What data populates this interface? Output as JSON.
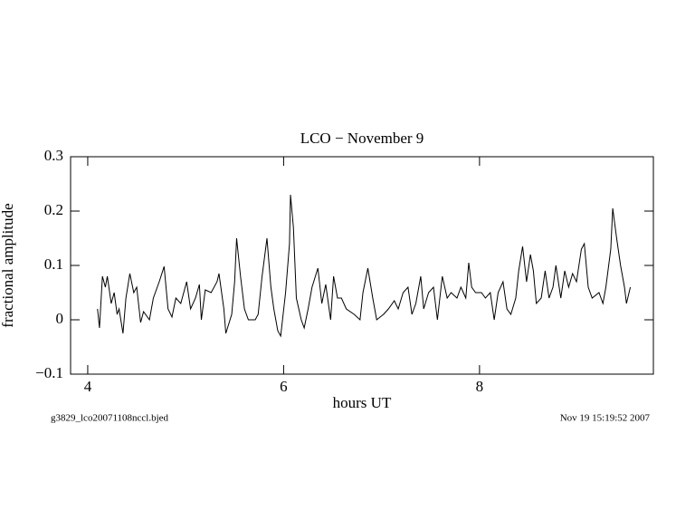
{
  "chart_data": {
    "type": "line",
    "title": "LCO − November 9",
    "x_label": "hours UT",
    "y_label": "fractional amplitude",
    "footnote_left": "g3829_lco20071108nccl.bjed",
    "footnote_right": "Nov 19 15:19:52 2007",
    "xlim": [
      3.825,
      9.775
    ],
    "ylim": [
      -0.1,
      0.3
    ],
    "xticks": [
      4,
      6,
      8
    ],
    "yticks": [
      {
        "value": -0.1,
        "label": "−0.1"
      },
      0,
      0.1,
      0.2,
      0.3
    ],
    "color": "#000000",
    "x": [
      4.1,
      4.12,
      4.15,
      4.18,
      4.2,
      4.24,
      4.27,
      4.3,
      4.32,
      4.36,
      4.39,
      4.43,
      4.47,
      4.5,
      4.54,
      4.57,
      4.63,
      4.67,
      4.73,
      4.78,
      4.82,
      4.86,
      4.9,
      4.95,
      5.01,
      5.05,
      5.1,
      5.14,
      5.16,
      5.2,
      5.26,
      5.32,
      5.34,
      5.39,
      5.41,
      5.47,
      5.5,
      5.52,
      5.56,
      5.6,
      5.64,
      5.71,
      5.74,
      5.78,
      5.83,
      5.87,
      5.9,
      5.94,
      5.97,
      6.02,
      6.06,
      6.07,
      6.1,
      6.13,
      6.18,
      6.21,
      6.25,
      6.29,
      6.35,
      6.39,
      6.43,
      6.48,
      6.51,
      6.55,
      6.59,
      6.64,
      6.72,
      6.78,
      6.81,
      6.86,
      6.91,
      6.95,
      7.02,
      7.07,
      7.13,
      7.17,
      7.22,
      7.27,
      7.31,
      7.35,
      7.4,
      7.43,
      7.48,
      7.53,
      7.57,
      7.62,
      7.67,
      7.71,
      7.77,
      7.81,
      7.86,
      7.89,
      7.92,
      7.96,
      8.02,
      8.06,
      8.11,
      8.15,
      8.19,
      8.24,
      8.28,
      8.32,
      8.37,
      8.4,
      8.44,
      8.48,
      8.52,
      8.55,
      8.58,
      8.63,
      8.67,
      8.71,
      8.75,
      8.78,
      8.83,
      8.87,
      8.91,
      8.95,
      8.99,
      9.04,
      9.07,
      9.11,
      9.15,
      9.22,
      9.26,
      9.29,
      9.34,
      9.36,
      9.4,
      9.44,
      9.48,
      9.5,
      9.54
    ],
    "values": [
      0.02,
      -0.015,
      0.08,
      0.06,
      0.08,
      0.03,
      0.05,
      0.01,
      0.02,
      -0.025,
      0.04,
      0.085,
      0.05,
      0.06,
      -0.005,
      0.015,
      0.0,
      0.04,
      0.07,
      0.098,
      0.02,
      0.005,
      0.04,
      0.03,
      0.07,
      0.02,
      0.04,
      0.065,
      0.0,
      0.055,
      0.05,
      0.07,
      0.085,
      0.02,
      -0.025,
      0.01,
      0.07,
      0.15,
      0.08,
      0.02,
      0.0,
      0.0,
      0.01,
      0.08,
      0.15,
      0.06,
      0.02,
      -0.02,
      -0.03,
      0.05,
      0.14,
      0.23,
      0.17,
      0.04,
      0.0,
      -0.015,
      0.02,
      0.06,
      0.095,
      0.03,
      0.065,
      0.0,
      0.08,
      0.04,
      0.04,
      0.02,
      0.01,
      0.0,
      0.05,
      0.095,
      0.04,
      0.0,
      0.01,
      0.02,
      0.035,
      0.02,
      0.05,
      0.06,
      0.01,
      0.03,
      0.08,
      0.02,
      0.05,
      0.06,
      0.0,
      0.08,
      0.04,
      0.05,
      0.04,
      0.06,
      0.04,
      0.105,
      0.06,
      0.05,
      0.05,
      0.04,
      0.05,
      0.0,
      0.05,
      0.07,
      0.02,
      0.01,
      0.04,
      0.09,
      0.135,
      0.07,
      0.12,
      0.09,
      0.03,
      0.04,
      0.09,
      0.04,
      0.06,
      0.1,
      0.04,
      0.09,
      0.06,
      0.085,
      0.07,
      0.13,
      0.14,
      0.06,
      0.04,
      0.05,
      0.03,
      0.06,
      0.13,
      0.205,
      0.15,
      0.1,
      0.06,
      0.03,
      0.06
    ]
  }
}
